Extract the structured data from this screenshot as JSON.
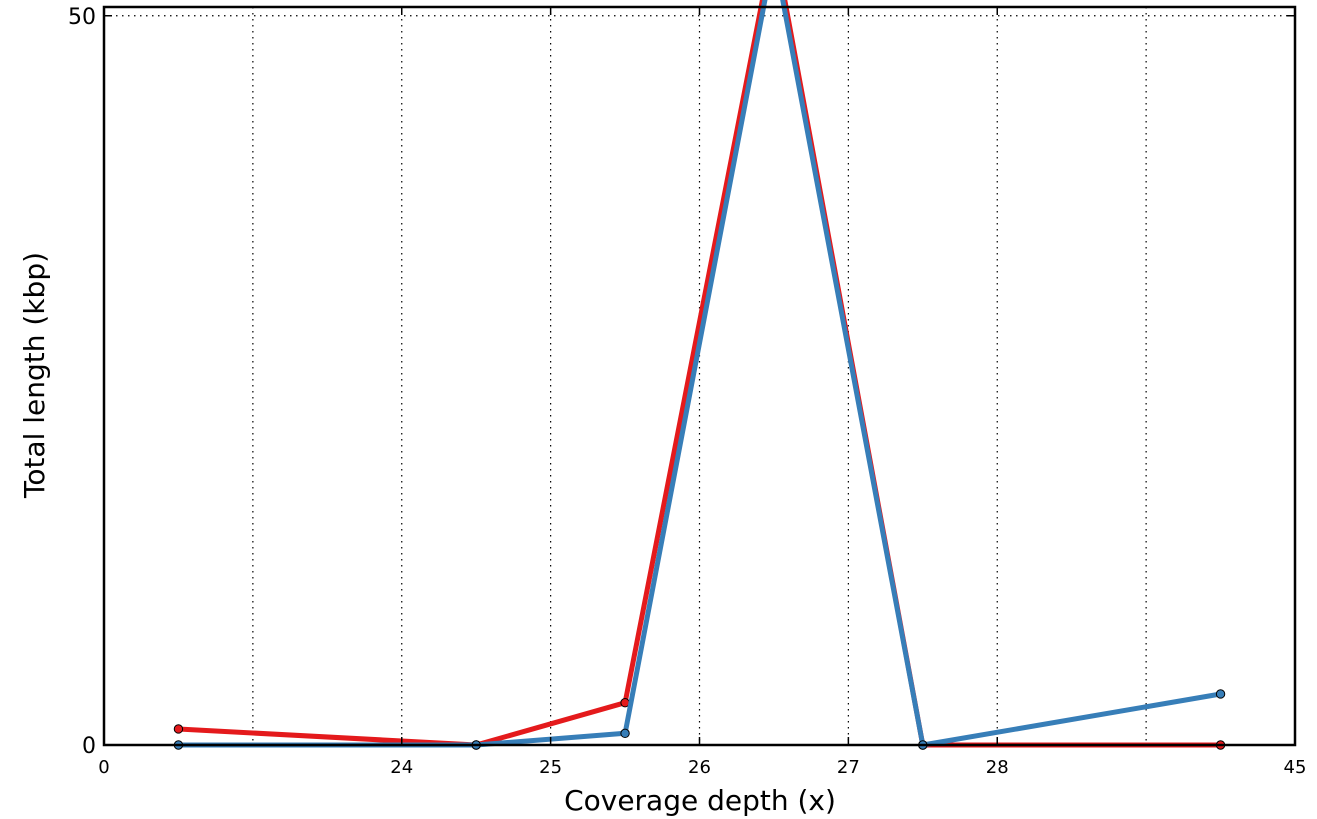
{
  "chart_data": {
    "type": "line",
    "title": "",
    "xlabel": "Coverage depth (x)",
    "ylabel": "Total length (kbp)",
    "x_ticks": [
      "0",
      "24",
      "25",
      "26",
      "27",
      "28",
      "45"
    ],
    "x_tick_positions": [
      0,
      2,
      3,
      4,
      5,
      6,
      8
    ],
    "x_gridlines": [
      1,
      2,
      3,
      4,
      5,
      6,
      7
    ],
    "x_range": [
      0,
      8
    ],
    "y_ticks": [
      0,
      50
    ],
    "y_range": [
      0,
      50.6
    ],
    "grid": true,
    "grid_style": "dotted",
    "series": [
      {
        "color": "#e41a1c",
        "x": [
          0.5,
          2.5,
          3.5,
          4.5,
          5.5,
          7.5
        ],
        "values": [
          1.1,
          0.0,
          2.9,
          55.1,
          0.0,
          0.0
        ]
      },
      {
        "color": "#377eb8",
        "x": [
          0.5,
          2.5,
          3.5,
          4.5,
          5.5,
          7.5
        ],
        "values": [
          0.0,
          0.0,
          0.8,
          54.3,
          0.0,
          3.5
        ]
      }
    ]
  }
}
